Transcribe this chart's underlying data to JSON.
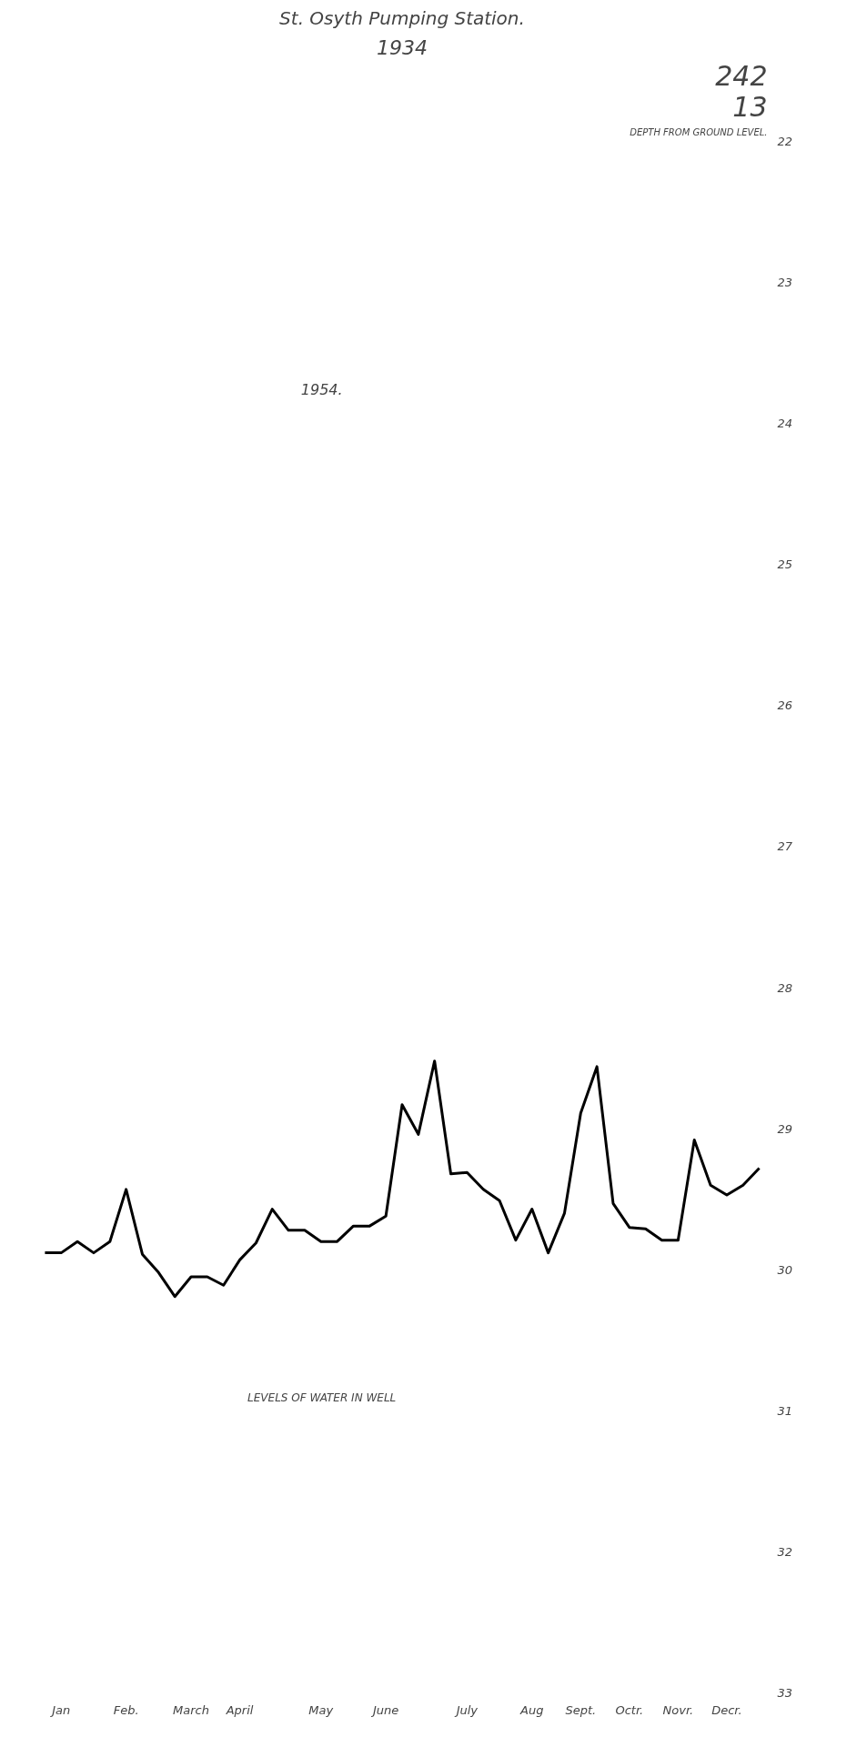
{
  "chart_data": {
    "type": "line",
    "title": "St. Osyth Pumping Station.",
    "subtitle": "1934",
    "annotations": [
      "1954.",
      "LEVELS OF WATER IN WELL",
      "DEPTH FROM GROUND LEVEL.",
      "242",
      "13"
    ],
    "categories": [
      null,
      "Jan",
      null,
      null,
      null,
      "Feb.",
      null,
      null,
      null,
      "March",
      null,
      null,
      "April",
      null,
      null,
      null,
      null,
      "May",
      null,
      null,
      null,
      "June",
      null,
      null,
      null,
      null,
      "July",
      null,
      null,
      null,
      "Aug",
      null,
      null,
      "Sept.",
      null,
      null,
      "Octr.",
      null,
      null,
      "Novr.",
      null,
      null,
      "Decr.",
      null,
      null
    ],
    "series": [
      {
        "color": "#000000",
        "values": [
          29.88,
          29.88,
          29.8,
          29.88,
          29.8,
          29.43,
          29.89,
          30.02,
          30.19,
          30.05,
          30.05,
          30.11,
          29.93,
          29.81,
          29.57,
          29.72,
          29.72,
          29.8,
          29.8,
          29.69,
          29.69,
          29.62,
          28.83,
          29.04,
          28.52,
          29.32,
          29.31,
          29.43,
          29.51,
          29.79,
          29.57,
          29.88,
          29.6,
          28.89,
          28.56,
          29.53,
          29.7,
          29.71,
          29.79,
          29.79,
          29.08,
          29.4,
          29.47,
          29.4,
          29.28
        ]
      }
    ],
    "ylim": [
      33,
      22
    ],
    "yticks": [
      22,
      23,
      24,
      25,
      26,
      27,
      28,
      29,
      30,
      31,
      32,
      33
    ],
    "grid": false,
    "marker": "none",
    "line_style": "solid"
  }
}
